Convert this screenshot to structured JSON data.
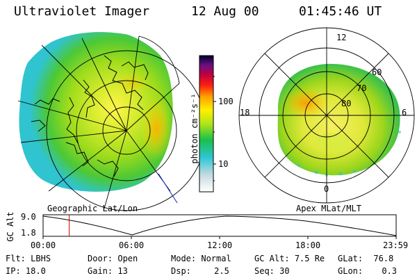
{
  "header": {
    "instrument": "Ultraviolet Imager",
    "date": "12 Aug 00",
    "time": "01:45:46 UT"
  },
  "colorbar": {
    "unit_label": "photon cm⁻²s⁻¹",
    "ticks": [
      "100",
      "10"
    ]
  },
  "left_panel": {
    "label": "Geographic Lat/Lon"
  },
  "right_panel": {
    "label": "Apex MLat/MLT",
    "mlt_labels": [
      "12",
      "18",
      "6",
      "0"
    ],
    "lat_labels": [
      "60",
      "70",
      "80"
    ]
  },
  "altitude_plot": {
    "ylabel": "GC Alt",
    "yticks": [
      "9.0",
      "1.8"
    ],
    "xticks": [
      "00:00",
      "06:00",
      "12:00",
      "18:00",
      "23:59"
    ],
    "current_time_fraction": 0.074
  },
  "footer": {
    "row1": [
      {
        "key": "Flt:",
        "value": "LBHS"
      },
      {
        "key": "Door:",
        "value": "Open"
      },
      {
        "key": "Mode:",
        "value": "Normal"
      },
      {
        "key": "GC Alt:",
        "value": "7.5 Re"
      },
      {
        "key": "GLat:",
        "value": "76.8"
      }
    ],
    "row2": [
      {
        "key": "IP:",
        "value": "18.0"
      },
      {
        "key": "Gain:",
        "value": "13"
      },
      {
        "key": "Dsp:",
        "value": "2.5"
      },
      {
        "key": "Seq:",
        "value": "30"
      },
      {
        "key": "GLon:",
        "value": "0.3"
      }
    ]
  },
  "colors": {
    "background": "#ffffff",
    "marker": "#d00000"
  }
}
